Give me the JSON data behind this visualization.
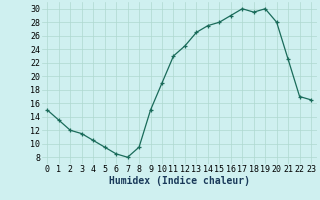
{
  "x": [
    0,
    1,
    2,
    3,
    4,
    5,
    6,
    7,
    8,
    9,
    10,
    11,
    12,
    13,
    14,
    15,
    16,
    17,
    18,
    19,
    20,
    21,
    22,
    23
  ],
  "y": [
    15,
    13.5,
    12,
    11.5,
    10.5,
    9.5,
    8.5,
    8,
    9.5,
    15,
    19,
    23,
    24.5,
    26.5,
    27.5,
    28,
    29,
    30,
    29.5,
    30,
    28,
    22.5,
    17,
    16.5
  ],
  "xlabel": "Humidex (Indice chaleur)",
  "xlim": [
    -0.5,
    23.5
  ],
  "ylim": [
    7,
    31
  ],
  "yticks": [
    8,
    10,
    12,
    14,
    16,
    18,
    20,
    22,
    24,
    26,
    28,
    30
  ],
  "xticks": [
    0,
    1,
    2,
    3,
    4,
    5,
    6,
    7,
    8,
    9,
    10,
    11,
    12,
    13,
    14,
    15,
    16,
    17,
    18,
    19,
    20,
    21,
    22,
    23
  ],
  "line_color": "#1a6b5a",
  "bg_color": "#cff0f0",
  "grid_color": "#afd8d0",
  "xlabel_fontsize": 7,
  "tick_fontsize": 6
}
